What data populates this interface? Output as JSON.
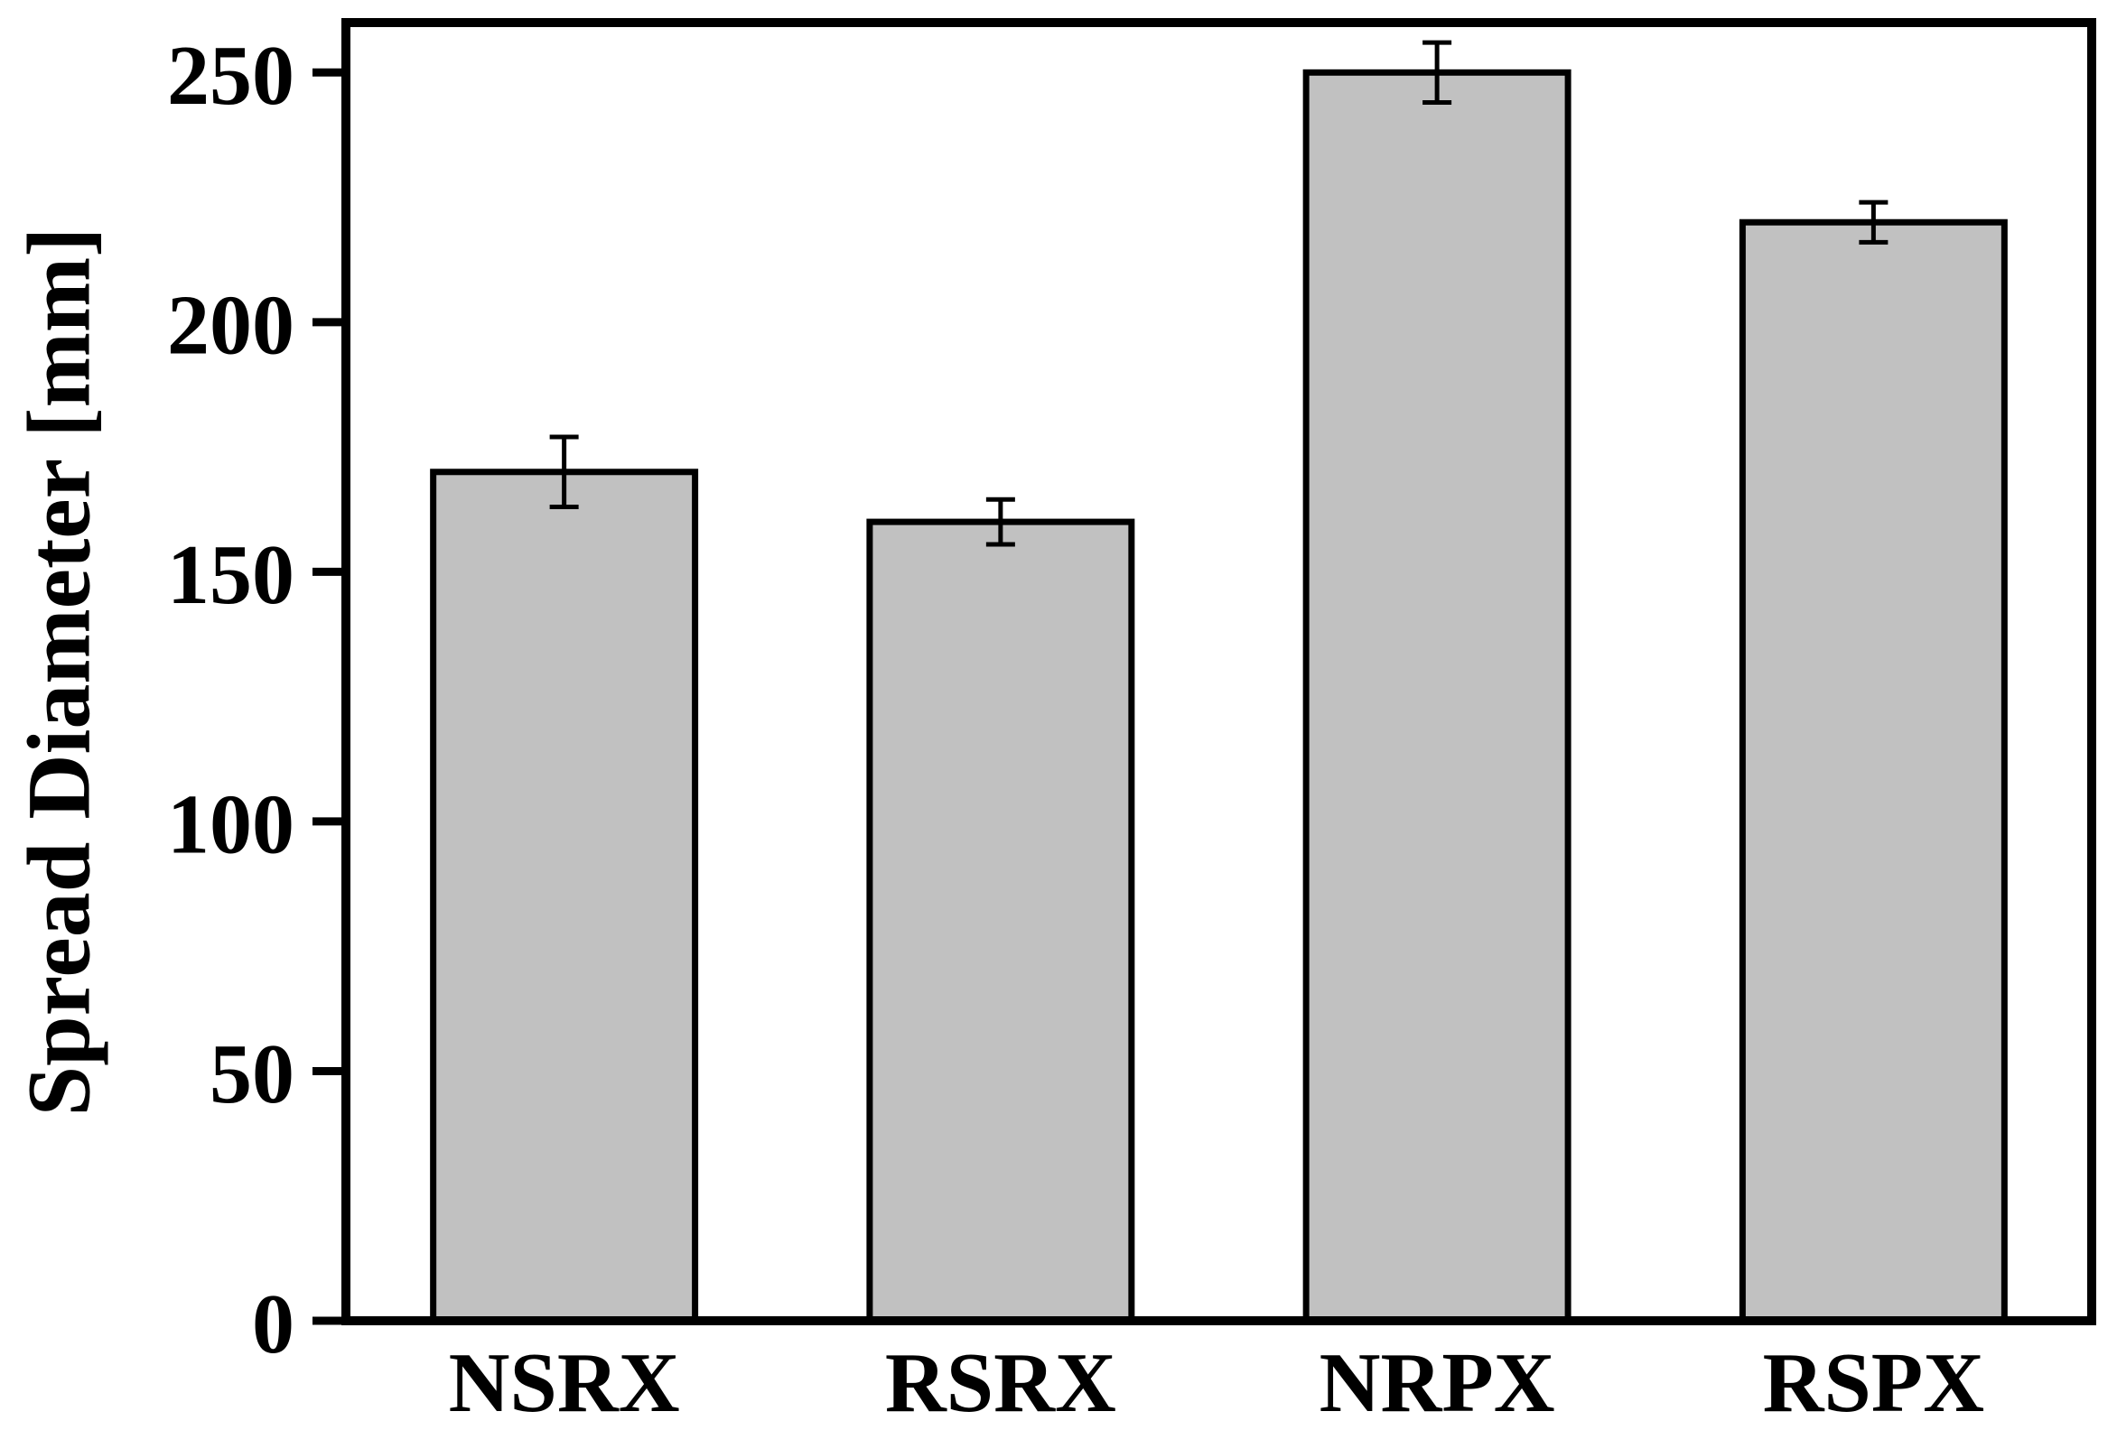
{
  "figure": {
    "background": "#ffffff",
    "text_color": "#000000"
  },
  "chart_data": {
    "type": "bar",
    "title": "",
    "xlabel": "",
    "ylabel": "Spread Diameter [mm]",
    "categories": [
      "NSRX",
      "RSRX",
      "NRPX",
      "RSPX"
    ],
    "values": [
      170,
      160,
      250,
      220
    ],
    "errors": [
      7,
      4.5,
      6,
      4
    ],
    "ylim": [
      0,
      260
    ],
    "yticks": [
      0,
      50,
      100,
      150,
      200,
      250
    ],
    "grid": "off",
    "legend": "none",
    "bar_fill_color": "#c1c1c1",
    "bar_edge_color": "#000000",
    "error_bar_color": "#000000",
    "axis_color": "#000000"
  }
}
